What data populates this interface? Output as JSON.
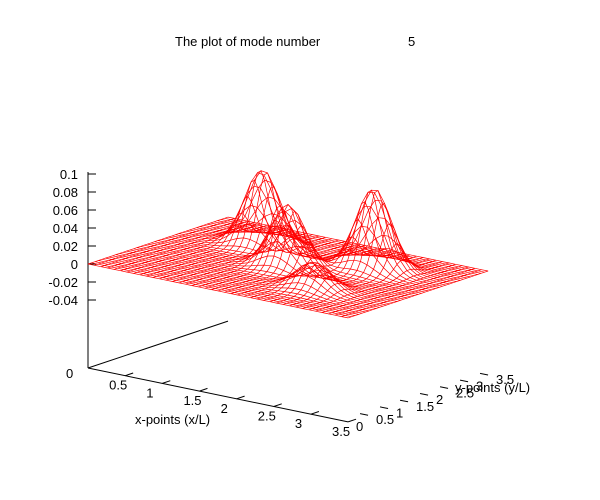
{
  "chart_data": {
    "type": "surface",
    "title": "The plot of mode number",
    "title_value": "5",
    "xlabel": "x-points (x/L)",
    "ylabel": "y-points (y/L)",
    "zlabel": "",
    "xlim": [
      0,
      3.5
    ],
    "ylim": [
      0,
      3.5
    ],
    "zlim": [
      -0.04,
      0.1
    ],
    "xticks": [
      "0",
      "0.5",
      "1",
      "1.5",
      "2",
      "2.5",
      "3",
      "3.5"
    ],
    "yticks": [
      "0",
      "0.5",
      "1",
      "1.5",
      "2",
      "2.5",
      "3",
      "3.5"
    ],
    "zticks": [
      "0.1",
      "0.08",
      "0.06",
      "0.04",
      "0.02",
      "0",
      "-0.02",
      "-0.04"
    ],
    "grid": false,
    "surface_color": "#ff0000",
    "hidden_color": "#000000",
    "peaks": [
      {
        "x": 1.0,
        "y": 2.5,
        "z": 0.085
      },
      {
        "x": 2.5,
        "y": 1.0,
        "z": 0.03
      },
      {
        "x": 1.75,
        "y": 1.75,
        "z": 0.07
      },
      {
        "x": 2.5,
        "y": 2.5,
        "z": 0.09
      }
    ]
  }
}
